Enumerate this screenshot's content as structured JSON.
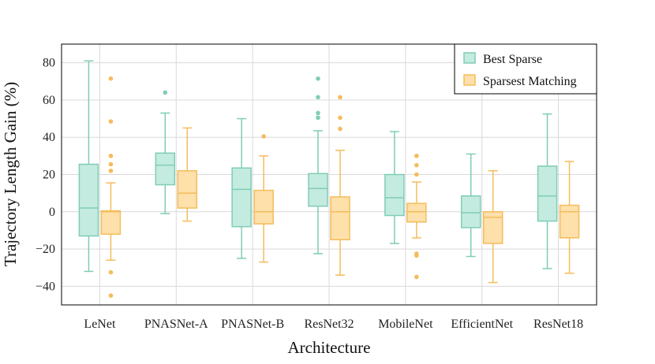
{
  "chart_data": {
    "type": "boxplot",
    "xlabel": "Architecture",
    "ylabel": "Trajectory Length Gain (%)",
    "ylim": [
      -50,
      90
    ],
    "yticks": [
      -40,
      -20,
      0,
      20,
      40,
      60,
      80
    ],
    "grid": true,
    "legend_position": "top-right",
    "categories": [
      "LeNet",
      "PNASNet-A",
      "PNASNet-B",
      "ResNet32",
      "MobileNet",
      "EfficientNet",
      "ResNet18"
    ],
    "series": [
      {
        "name": "Best Sparse",
        "color": "#7fcdb4",
        "fill": "#c4ebe0",
        "boxes": [
          {
            "whislo": -32,
            "q1": -13,
            "med": 2,
            "q3": 25.5,
            "whishi": 81,
            "fliers": []
          },
          {
            "whislo": -1,
            "q1": 14.5,
            "med": 25,
            "q3": 31.5,
            "whishi": 53,
            "fliers": [
              64
            ]
          },
          {
            "whislo": -25,
            "q1": -8,
            "med": 12,
            "q3": 23.5,
            "whishi": 50,
            "fliers": []
          },
          {
            "whislo": -22.5,
            "q1": 3,
            "med": 12.5,
            "q3": 20.5,
            "whishi": 43.5,
            "fliers": [
              50.5,
              53,
              61.5,
              71.5
            ]
          },
          {
            "whislo": -17,
            "q1": -2,
            "med": 7.5,
            "q3": 20,
            "whishi": 43,
            "fliers": []
          },
          {
            "whislo": -24,
            "q1": -8.5,
            "med": -0.5,
            "q3": 8.5,
            "whishi": 31,
            "fliers": []
          },
          {
            "whislo": -30.5,
            "q1": -5,
            "med": 8.5,
            "q3": 24.5,
            "whishi": 52.5,
            "fliers": []
          }
        ]
      },
      {
        "name": "Sparsest Matching",
        "color": "#f5bc5c",
        "fill": "#fde0aa",
        "boxes": [
          {
            "whislo": -26,
            "q1": -12,
            "med": 0,
            "q3": 0.5,
            "whishi": 15.5,
            "fliers": [
              -45,
              -32.5,
              22,
              25.5,
              30,
              48.5,
              71.5
            ]
          },
          {
            "whislo": -5,
            "q1": 2,
            "med": 10,
            "q3": 22,
            "whishi": 45,
            "fliers": []
          },
          {
            "whislo": -27,
            "q1": -6.5,
            "med": 0,
            "q3": 11.5,
            "whishi": 30,
            "fliers": [
              40.5
            ]
          },
          {
            "whislo": -34,
            "q1": -15,
            "med": 0,
            "q3": 8,
            "whishi": 33,
            "fliers": [
              44.5,
              50.5,
              61.5
            ]
          },
          {
            "whislo": -14,
            "q1": -5.5,
            "med": 0,
            "q3": 4.5,
            "whishi": 16,
            "fliers": [
              -35,
              -23.5,
              -22.5,
              20,
              25,
              30
            ]
          },
          {
            "whislo": -38,
            "q1": -17,
            "med": -3,
            "q3": 0,
            "whishi": 22,
            "fliers": []
          },
          {
            "whislo": -33,
            "q1": -14,
            "med": 0,
            "q3": 3.5,
            "whishi": 27,
            "fliers": []
          }
        ]
      }
    ]
  }
}
